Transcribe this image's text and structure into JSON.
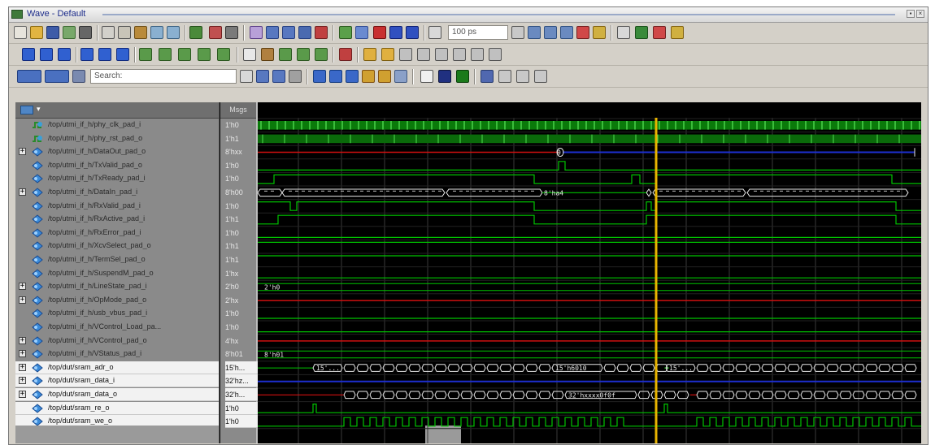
{
  "window": {
    "title": "Wave - Default"
  },
  "toolbar": {
    "search_placeholder": "Search:",
    "time_value": "100 ps",
    "time_unit_label": "100 ps"
  },
  "header": {
    "value_column_label": "Msgs"
  },
  "colors": {
    "background": "#000000",
    "wave_green": "#00c400",
    "wave_blue": "#1d2fd0",
    "wave_red": "#d01010",
    "grid": "#3a3a3a",
    "cursor": "#e8b400"
  },
  "signals": [
    {
      "name": "/top/utmi_if_h/phy_clk_pad_i",
      "value": "1'h0",
      "expandable": false,
      "icon": "clock-signal-icon"
    },
    {
      "name": "/top/utmi_if_h/phy_rst_pad_o",
      "value": "1'h1",
      "expandable": false,
      "icon": "clock-signal-icon"
    },
    {
      "name": "/top/utmi_if_h/DataOut_pad_o",
      "value": "8'hxx",
      "expandable": true,
      "icon": "bus-signal-icon"
    },
    {
      "name": "/top/utmi_if_h/TxValid_pad_o",
      "value": "1'h0",
      "expandable": false,
      "icon": "signal-icon"
    },
    {
      "name": "/top/utmi_if_h/TxReady_pad_i",
      "value": "1'h0",
      "expandable": false,
      "icon": "signal-icon"
    },
    {
      "name": "/top/utmi_if_h/DataIn_pad_i",
      "value": "8'h00",
      "expandable": true,
      "icon": "bus-signal-icon"
    },
    {
      "name": "/top/utmi_if_h/RxValid_pad_i",
      "value": "1'h0",
      "expandable": false,
      "icon": "signal-icon"
    },
    {
      "name": "/top/utmi_if_h/RxActive_pad_i",
      "value": "1'h1",
      "expandable": false,
      "icon": "signal-icon"
    },
    {
      "name": "/top/utmi_if_h/RxError_pad_i",
      "value": "1'h0",
      "expandable": false,
      "icon": "signal-icon"
    },
    {
      "name": "/top/utmi_if_h/XcvSelect_pad_o",
      "value": "1'h1",
      "expandable": false,
      "icon": "signal-icon"
    },
    {
      "name": "/top/utmi_if_h/TermSel_pad_o",
      "value": "1'h1",
      "expandable": false,
      "icon": "signal-icon"
    },
    {
      "name": "/top/utmi_if_h/SuspendM_pad_o",
      "value": "1'hx",
      "expandable": false,
      "icon": "signal-icon"
    },
    {
      "name": "/top/utmi_if_h/LineState_pad_i",
      "value": "2'h0",
      "expandable": true,
      "icon": "bus-signal-icon"
    },
    {
      "name": "/top/utmi_if_h/OpMode_pad_o",
      "value": "2'hx",
      "expandable": true,
      "icon": "bus-signal-icon"
    },
    {
      "name": "/top/utmi_if_h/usb_vbus_pad_i",
      "value": "1'h0",
      "expandable": false,
      "icon": "signal-icon"
    },
    {
      "name": "/top/utmi_if_h/VControl_Load_pa...",
      "value": "1'h0",
      "expandable": false,
      "icon": "signal-icon"
    },
    {
      "name": "/top/utmi_if_h/VControl_pad_o",
      "value": "4'hx",
      "expandable": true,
      "icon": "bus-signal-icon"
    },
    {
      "name": "/top/utmi_if_h/VStatus_pad_i",
      "value": "8'h01",
      "expandable": true,
      "icon": "bus-signal-icon"
    },
    {
      "name": "/top/dut/sram_adr_o",
      "value": "15'h...",
      "expandable": true,
      "icon": "bus-signal-icon"
    },
    {
      "name": "/top/dut/sram_data_i",
      "value": "32'hz...",
      "expandable": true,
      "icon": "bus-signal-icon"
    },
    {
      "name": "/top/dut/sram_data_o",
      "value": "32'h...",
      "expandable": true,
      "icon": "bus-signal-icon"
    },
    {
      "name": "/top/dut/sram_re_o",
      "value": "1'h0",
      "expandable": false,
      "icon": "signal-icon"
    },
    {
      "name": "/top/dut/sram_we_o",
      "value": "1'h0",
      "expandable": false,
      "icon": "signal-icon"
    }
  ],
  "wave_labels": {
    "dataout_marker": "0",
    "datain_mid": "8'ha4",
    "linestate": "2'h0",
    "vstatus": "8'h01",
    "adr_first": "15'...",
    "adr_mid": "15'h6010",
    "adr_second": "15'...",
    "data_o_mid": "32'hxxxx0f0f"
  }
}
